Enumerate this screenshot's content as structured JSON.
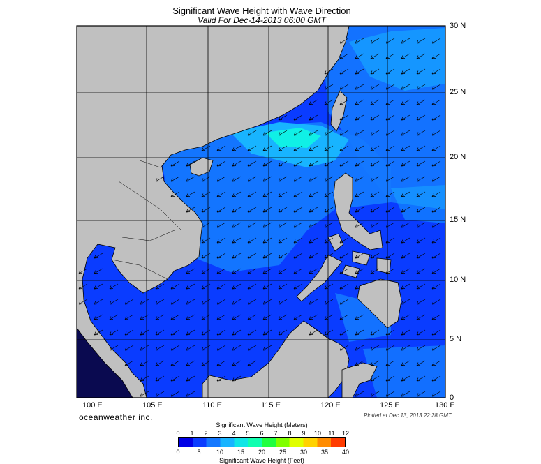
{
  "title": "Significant Wave Height with Wave Direction",
  "subtitle": "Valid For Dec-14-2013 06:00 GMT",
  "lat_labels": [
    "30 N",
    "25 N",
    "20 N",
    "15 N",
    "10 N",
    "5 N",
    "0"
  ],
  "lon_labels": [
    "100 E",
    "105 E",
    "110 E",
    "115 E",
    "120 E",
    "125 E",
    "130 E"
  ],
  "brand": "oceanweather inc.",
  "plotted": "Plotted at Dec 13, 2013 22:28 GMT",
  "colorbar": {
    "meters_title": "Significant Wave Height (Meters)",
    "feet_title": "Significant Wave Height (Feet)",
    "meters_ticks": [
      "0",
      "1",
      "2",
      "3",
      "4",
      "5",
      "6",
      "7",
      "8",
      "9",
      "10",
      "11",
      "12"
    ],
    "feet_ticks": [
      "0",
      "5",
      "10",
      "15",
      "20",
      "25",
      "30",
      "35",
      "40"
    ],
    "colors": [
      "#0000e6",
      "#0a3cff",
      "#1478ff",
      "#18b4ff",
      "#10e6e6",
      "#10ffb0",
      "#20ff40",
      "#80ff00",
      "#e0ff00",
      "#ffd200",
      "#ff8c00",
      "#ff3c00"
    ]
  },
  "colors": {
    "land": "#c0c0c0",
    "ocean_deep": "#0a3cff",
    "ocean_mid": "#1478ff",
    "ocean_light": "#18b4ff",
    "ocean_peak": "#10f0e6"
  }
}
